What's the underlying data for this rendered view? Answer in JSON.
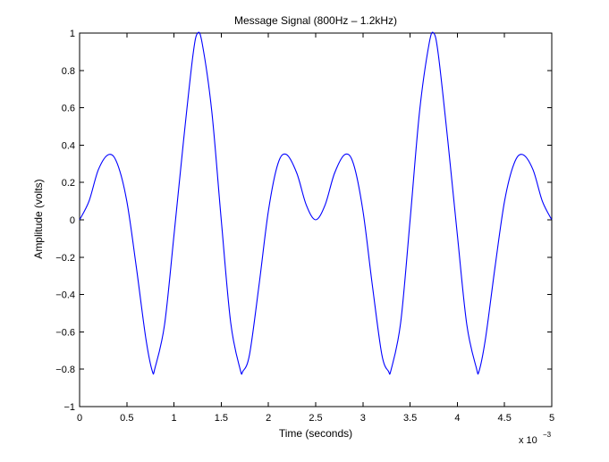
{
  "chart_data": {
    "type": "line",
    "title": "Message Signal (800Hz – 1.2kHz)",
    "xlabel": "Time (seconds)",
    "ylabel": "Amplitude (volts)",
    "x_multiplier_label": "x 10",
    "x_multiplier_exponent": "−3",
    "xlim": [
      0,
      0.005
    ],
    "ylim": [
      -1,
      1
    ],
    "grid": false,
    "line_color": "#0000ff",
    "x_ticks": [
      0,
      0.0005,
      0.001,
      0.0015,
      0.002,
      0.0025,
      0.003,
      0.0035,
      0.004,
      0.0045,
      0.005
    ],
    "x_tick_labels": [
      "0",
      "0.5",
      "1",
      "1.5",
      "2",
      "2.5",
      "3",
      "3.5",
      "4",
      "4.5",
      "5"
    ],
    "y_ticks": [
      -1,
      -0.8,
      -0.6,
      -0.4,
      -0.2,
      0,
      0.2,
      0.4,
      0.6,
      0.8,
      1
    ],
    "y_tick_labels": [
      "−1",
      "−0.8",
      "−0.6",
      "−0.4",
      "−0.2",
      "0",
      "0.2",
      "0.4",
      "0.6",
      "0.8",
      "1"
    ],
    "series": [
      {
        "points": [
          [
            0,
            0.0
          ],
          [
            0.0001,
            0.1
          ],
          [
            0.0002,
            0.27
          ],
          [
            0.00031,
            0.35
          ],
          [
            0.0004,
            0.3
          ],
          [
            0.0005,
            0.1
          ],
          [
            0.0006,
            -0.25
          ],
          [
            0.0007,
            -0.63
          ],
          [
            0.00077,
            -0.81
          ],
          [
            0.0008,
            -0.79
          ],
          [
            0.0009,
            -0.56
          ],
          [
            0.001,
            -0.08
          ],
          [
            0.0011,
            0.42
          ],
          [
            0.0012,
            0.88
          ],
          [
            0.00125,
            1.0
          ],
          [
            0.0013,
            0.94
          ],
          [
            0.0014,
            0.58
          ],
          [
            0.0015,
            0.0
          ],
          [
            0.0016,
            -0.55
          ],
          [
            0.0017,
            -0.8
          ],
          [
            0.00173,
            -0.81
          ],
          [
            0.0018,
            -0.72
          ],
          [
            0.0019,
            -0.35
          ],
          [
            0.002,
            0.05
          ],
          [
            0.0021,
            0.3
          ],
          [
            0.00219,
            0.35
          ],
          [
            0.0023,
            0.25
          ],
          [
            0.0024,
            0.08
          ],
          [
            0.0025,
            0.0
          ],
          [
            0.0026,
            0.08
          ],
          [
            0.0027,
            0.25
          ],
          [
            0.00281,
            0.35
          ],
          [
            0.0029,
            0.3
          ],
          [
            0.003,
            0.05
          ],
          [
            0.0031,
            -0.35
          ],
          [
            0.0032,
            -0.72
          ],
          [
            0.00327,
            -0.81
          ],
          [
            0.0033,
            -0.8
          ],
          [
            0.0034,
            -0.55
          ],
          [
            0.0035,
            0.0
          ],
          [
            0.0036,
            0.58
          ],
          [
            0.0037,
            0.94
          ],
          [
            0.00375,
            1.0
          ],
          [
            0.0038,
            0.88
          ],
          [
            0.0039,
            0.42
          ],
          [
            0.004,
            -0.08
          ],
          [
            0.0041,
            -0.56
          ],
          [
            0.0042,
            -0.79
          ],
          [
            0.00423,
            -0.81
          ],
          [
            0.0043,
            -0.63
          ],
          [
            0.0044,
            -0.25
          ],
          [
            0.0045,
            0.1
          ],
          [
            0.0046,
            0.3
          ],
          [
            0.00469,
            0.35
          ],
          [
            0.0048,
            0.27
          ],
          [
            0.0049,
            0.1
          ],
          [
            0.005,
            0.0
          ]
        ]
      }
    ]
  }
}
